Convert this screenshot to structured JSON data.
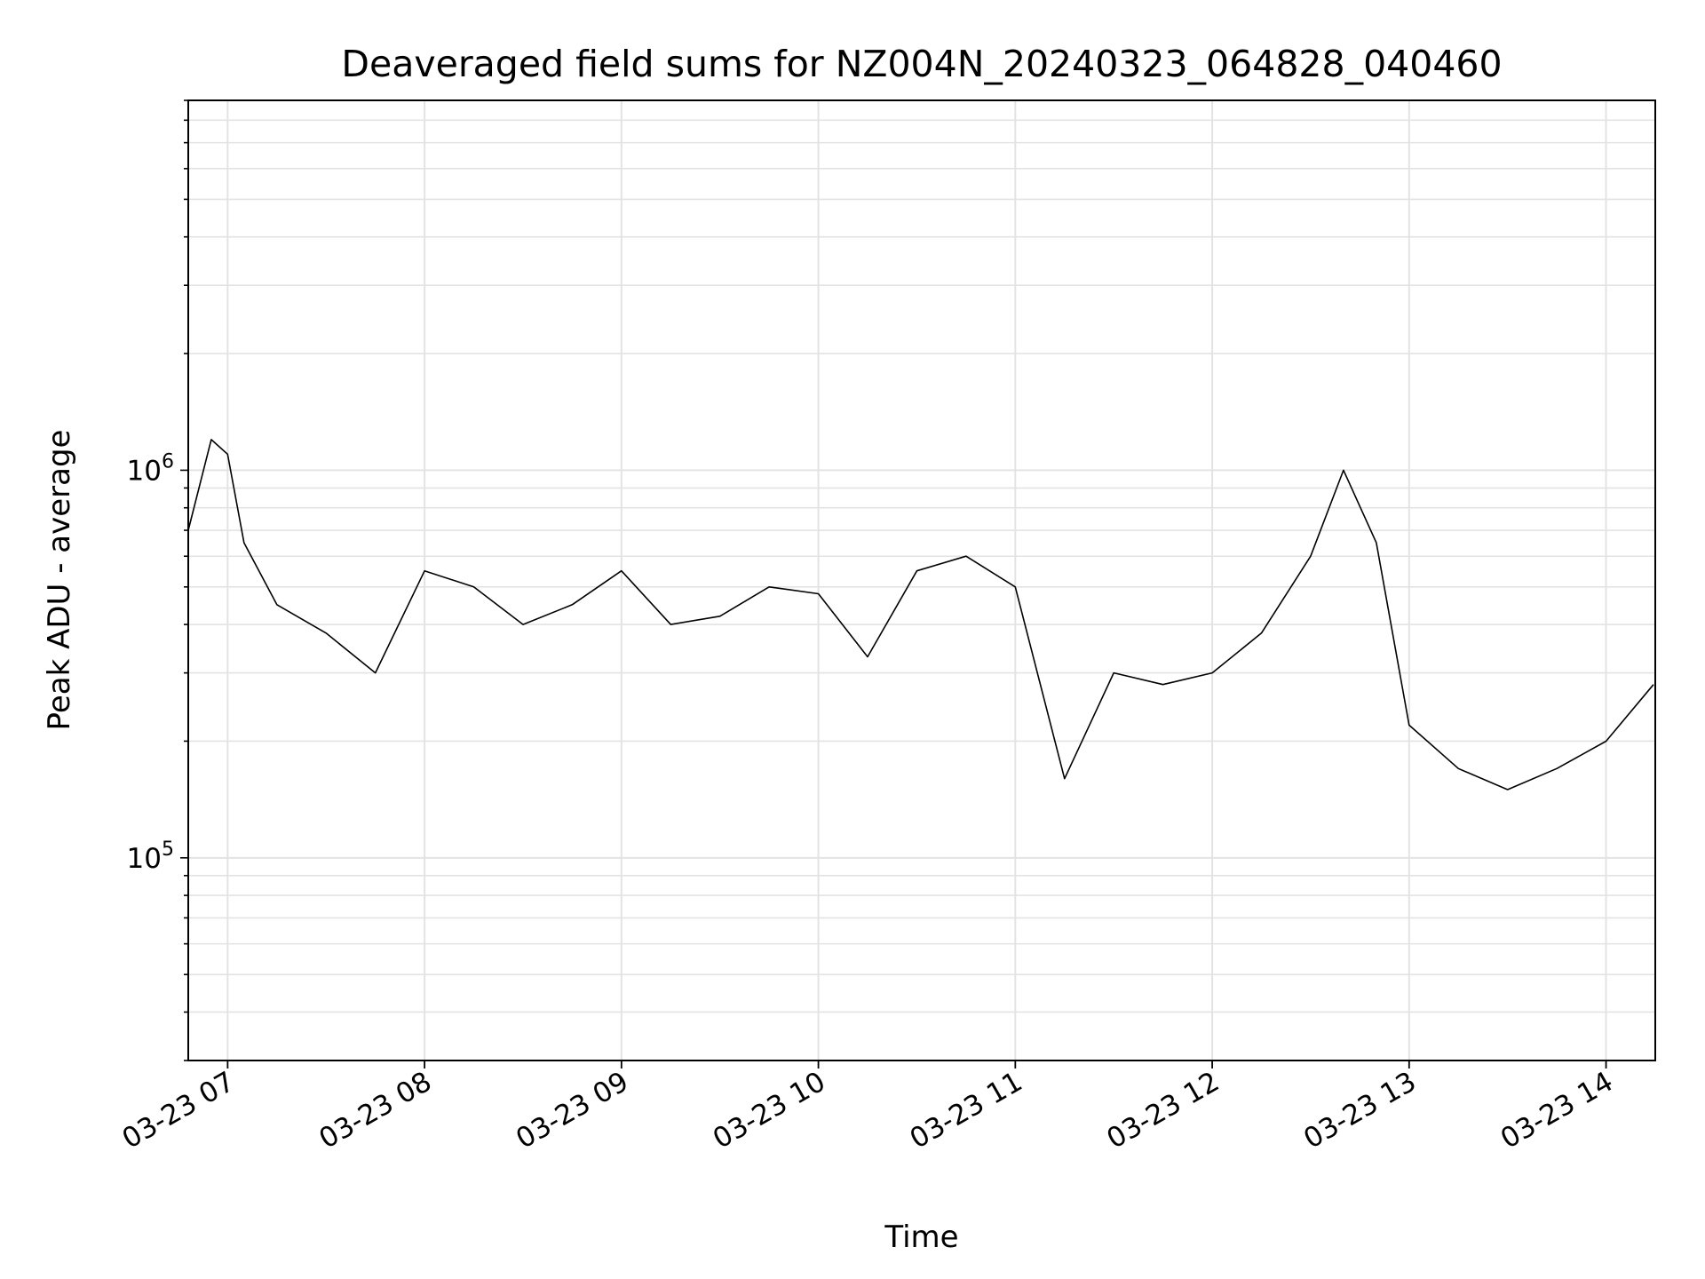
{
  "chart_data": {
    "type": "line",
    "title": "Deaveraged field sums for NZ004N_20240323_064828_040460",
    "xlabel": "Time",
    "ylabel": "Peak ADU - average",
    "y_scale": "log",
    "ylim": [
      30000,
      9000000
    ],
    "xlim": [
      "2024-03-23 06:48",
      "2024-03-23 14:15"
    ],
    "x_ticks": [
      "03-23 07",
      "03-23 08",
      "03-23 09",
      "03-23 10",
      "03-23 11",
      "03-23 12",
      "03-23 13",
      "03-23 14"
    ],
    "y_ticks": [
      {
        "value": 100000,
        "base": "10",
        "exp": "5"
      },
      {
        "value": 1000000,
        "base": "10",
        "exp": "6"
      }
    ],
    "grid": true,
    "line_color": "#000000",
    "series": [
      {
        "x": [
          "2024-03-23 06:48",
          "2024-03-23 06:55",
          "2024-03-23 07:00",
          "2024-03-23 07:05",
          "2024-03-23 07:15",
          "2024-03-23 07:30",
          "2024-03-23 07:45",
          "2024-03-23 08:00",
          "2024-03-23 08:15",
          "2024-03-23 08:30",
          "2024-03-23 08:45",
          "2024-03-23 09:00",
          "2024-03-23 09:15",
          "2024-03-23 09:30",
          "2024-03-23 09:45",
          "2024-03-23 10:00",
          "2024-03-23 10:15",
          "2024-03-23 10:30",
          "2024-03-23 10:45",
          "2024-03-23 11:00",
          "2024-03-23 11:15",
          "2024-03-23 11:30",
          "2024-03-23 11:45",
          "2024-03-23 12:00",
          "2024-03-23 12:15",
          "2024-03-23 12:30",
          "2024-03-23 12:40",
          "2024-03-23 12:50",
          "2024-03-23 13:00",
          "2024-03-23 13:15",
          "2024-03-23 13:30",
          "2024-03-23 13:45",
          "2024-03-23 14:00",
          "2024-03-23 14:15"
        ],
        "values": [
          700000,
          1200000,
          1100000,
          650000,
          450000,
          380000,
          300000,
          550000,
          500000,
          400000,
          450000,
          550000,
          400000,
          420000,
          500000,
          480000,
          330000,
          550000,
          600000,
          500000,
          160000,
          300000,
          280000,
          300000,
          380000,
          600000,
          1000000,
          650000,
          220000,
          170000,
          150000,
          170000,
          200000,
          280000
        ]
      }
    ]
  }
}
